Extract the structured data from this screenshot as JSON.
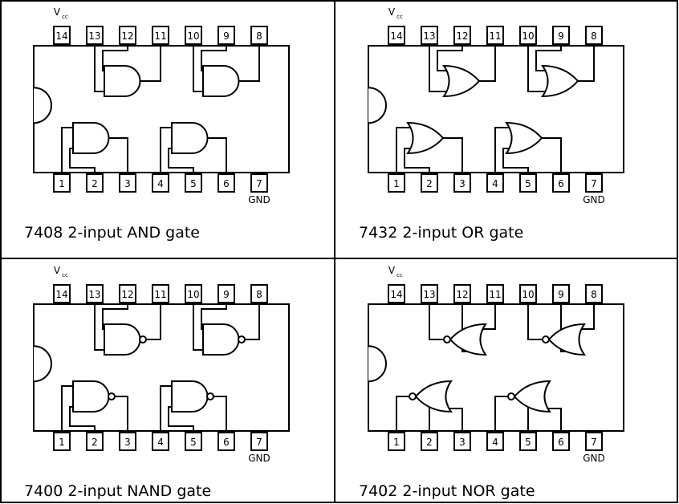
{
  "stroke_color": "#000000",
  "background": "#ffffff",
  "panels": [
    {
      "id": "and",
      "gate_type": "and",
      "caption": "7408 2-input AND gate",
      "vcc_label": "V",
      "vcc_sub": "cc",
      "gnd_label": "GND",
      "top_pins": [
        "14",
        "13",
        "12",
        "11",
        "10",
        "9",
        "8"
      ],
      "bottom_pins": [
        "1",
        "2",
        "3",
        "4",
        "5",
        "6",
        "7"
      ]
    },
    {
      "id": "or",
      "gate_type": "or",
      "caption": "7432 2-input OR gate",
      "vcc_label": "V",
      "vcc_sub": "cc",
      "gnd_label": "GND",
      "top_pins": [
        "14",
        "13",
        "12",
        "11",
        "10",
        "9",
        "8"
      ],
      "bottom_pins": [
        "1",
        "2",
        "3",
        "4",
        "5",
        "6",
        "7"
      ]
    },
    {
      "id": "nand",
      "gate_type": "nand",
      "caption": "7400 2-input NAND gate",
      "vcc_label": "V",
      "vcc_sub": "cc",
      "gnd_label": "GND",
      "top_pins": [
        "14",
        "13",
        "12",
        "11",
        "10",
        "9",
        "8"
      ],
      "bottom_pins": [
        "1",
        "2",
        "3",
        "4",
        "5",
        "6",
        "7"
      ]
    },
    {
      "id": "nor",
      "gate_type": "nor",
      "caption": "7402 2-input NOR gate",
      "vcc_label": "V",
      "vcc_sub": "cc",
      "gnd_label": "GND",
      "top_pins": [
        "14",
        "13",
        "12",
        "11",
        "10",
        "9",
        "8"
      ],
      "bottom_pins": [
        "1",
        "2",
        "3",
        "4",
        "5",
        "6",
        "7"
      ]
    }
  ]
}
